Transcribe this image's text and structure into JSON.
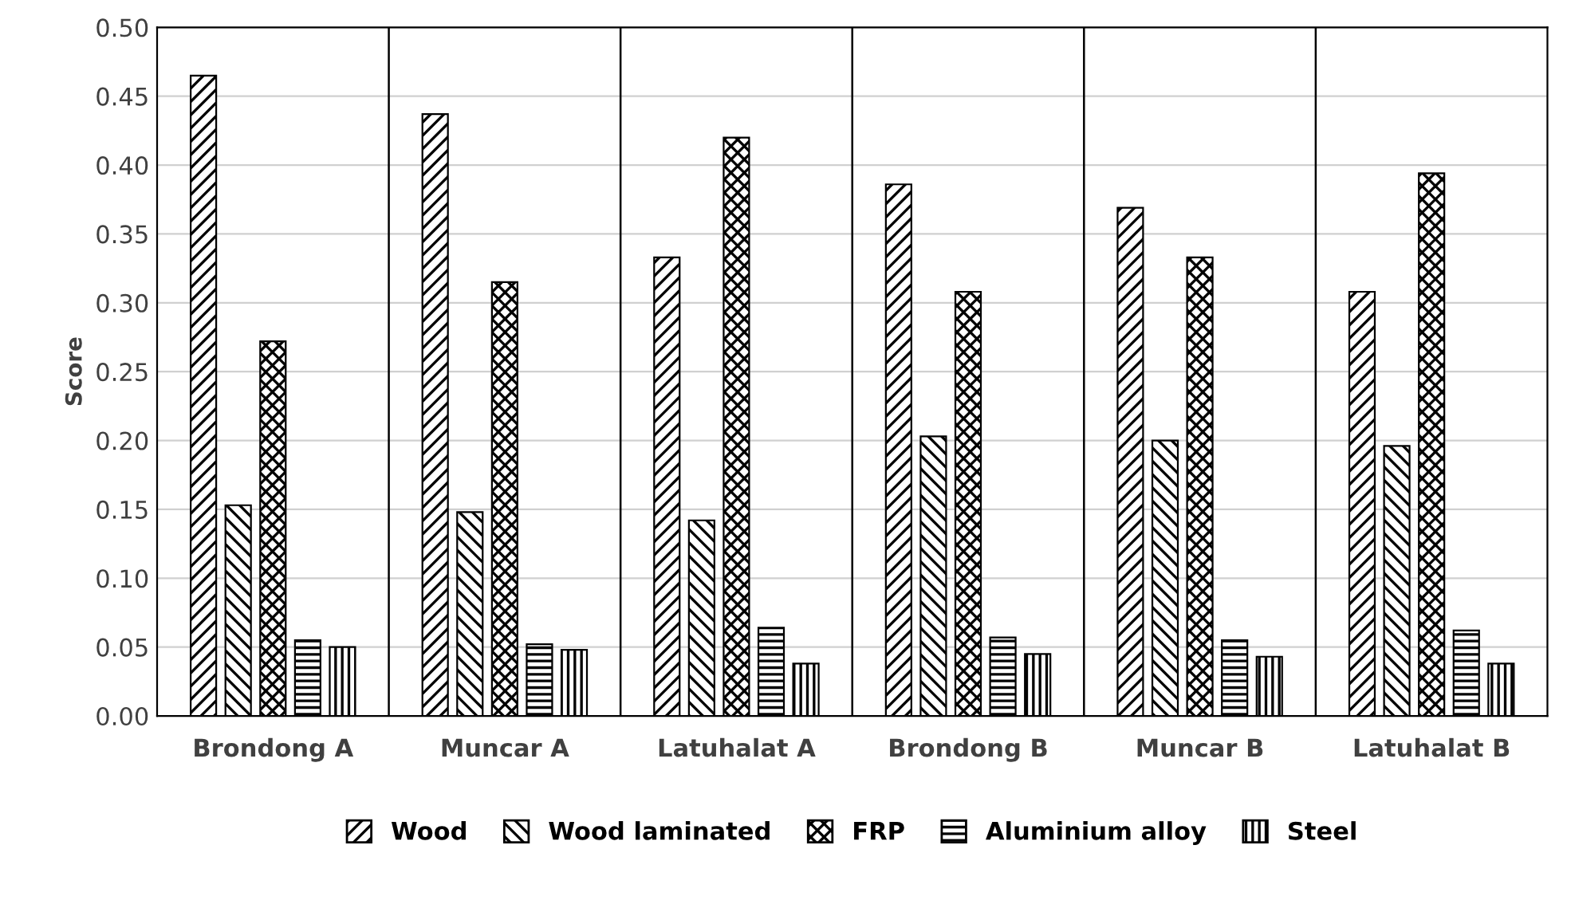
{
  "chart_data": {
    "type": "bar",
    "ylabel": "Score",
    "categories": [
      "Brondong A",
      "Muncar A",
      "Latuhalat A",
      "Brondong B",
      "Muncar B",
      "Latuhalat B"
    ],
    "series": [
      {
        "name": "Wood",
        "color": "#000000",
        "values": [
          0.465,
          0.437,
          0.333,
          0.386,
          0.369,
          0.308
        ]
      },
      {
        "name": "Wood laminated",
        "color": "#000000",
        "values": [
          0.153,
          0.148,
          0.142,
          0.203,
          0.2,
          0.196
        ]
      },
      {
        "name": "FRP",
        "color": "#000000",
        "values": [
          0.272,
          0.315,
          0.42,
          0.308,
          0.333,
          0.394
        ]
      },
      {
        "name": "Aluminium alloy",
        "color": "#000000",
        "values": [
          0.055,
          0.052,
          0.064,
          0.057,
          0.055,
          0.062
        ]
      },
      {
        "name": "Steel",
        "color": "#000000",
        "values": [
          0.05,
          0.048,
          0.038,
          0.045,
          0.043,
          0.038
        ]
      }
    ],
    "ylim": [
      0,
      0.5
    ],
    "yticks": [
      {
        "value": 0,
        "label": "0.00"
      },
      {
        "value": 0.05,
        "label": "0.05"
      },
      {
        "value": 0.1,
        "label": "0.10"
      },
      {
        "value": 0.15,
        "label": "0.15"
      },
      {
        "value": 0.2,
        "label": "0.20"
      },
      {
        "value": 0.25,
        "label": "0.25"
      },
      {
        "value": 0.3,
        "label": "0.30"
      },
      {
        "value": 0.35,
        "label": "0.35"
      },
      {
        "value": 0.4,
        "label": "0.40"
      },
      {
        "value": 0.45,
        "label": "0.45"
      },
      {
        "value": 0.5,
        "label": "0.50"
      }
    ],
    "grid": true,
    "legend": "bottom"
  }
}
